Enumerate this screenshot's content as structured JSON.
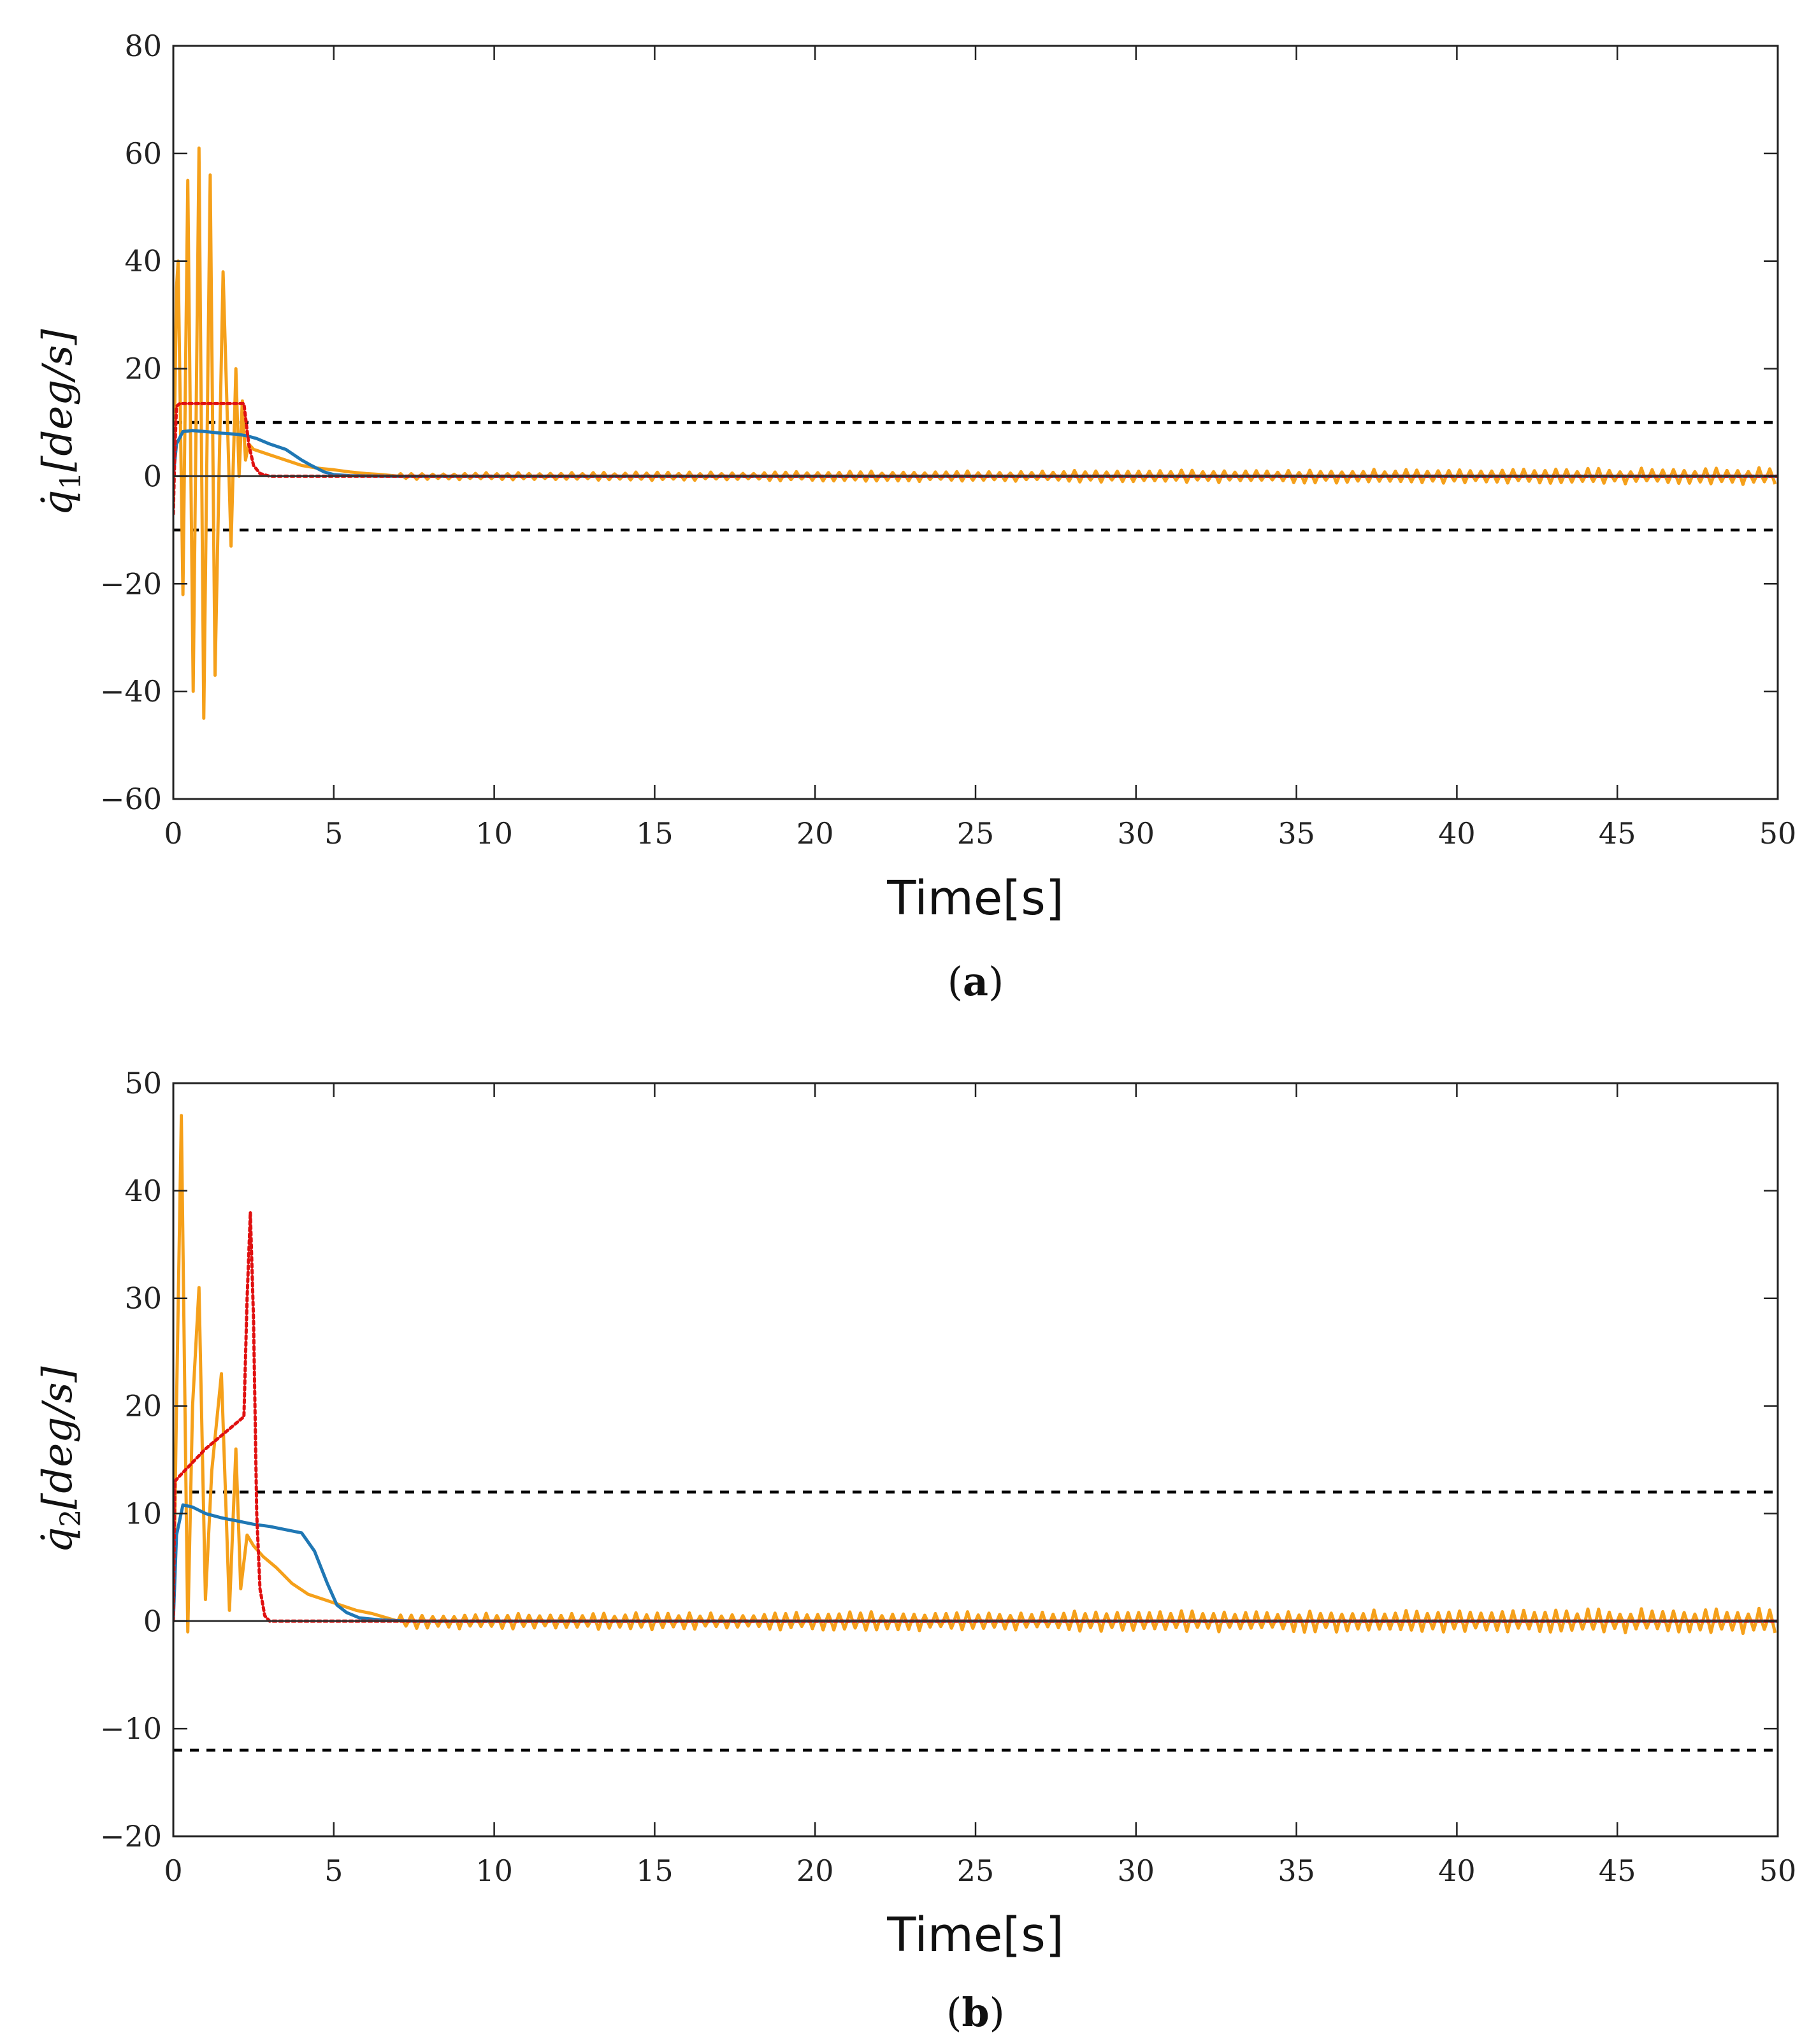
{
  "chart_data": [
    {
      "type": "line",
      "panel": "a",
      "caption_letter": "a",
      "xlabel": "Time[s]",
      "ylabel": "q̇1[deg/s]",
      "ylabel_parts": {
        "symbol": "q̇",
        "sub": "1",
        "unit": "[deg/s]"
      },
      "xlim": [
        0,
        50
      ],
      "ylim": [
        -60,
        80
      ],
      "xticks": [
        0,
        5,
        10,
        15,
        20,
        25,
        30,
        35,
        40,
        45,
        50
      ],
      "yticks": [
        -60,
        -40,
        -20,
        0,
        20,
        40,
        60,
        80
      ],
      "ytick_labels": [
        "−60",
        "−40",
        "−20",
        "0",
        "20",
        "40",
        "60",
        "80"
      ],
      "grid": false,
      "series": [
        {
          "name": "bound-upper",
          "color": "#000000",
          "style": "dashed",
          "x": [
            0,
            50
          ],
          "y": [
            10,
            10
          ]
        },
        {
          "name": "bound-lower",
          "color": "#000000",
          "style": "dashed",
          "x": [
            0,
            50
          ],
          "y": [
            -10,
            -10
          ]
        },
        {
          "name": "orange-oscillating",
          "color": "#F5A01A",
          "style": "solid",
          "x": [
            0,
            0.1,
            0.15,
            0.3,
            0.45,
            0.62,
            0.8,
            0.95,
            1.15,
            1.3,
            1.55,
            1.8,
            1.95,
            2.05,
            2.15,
            2.25,
            2.35,
            2.5,
            3.0,
            3.5,
            4.0,
            4.5,
            5.0,
            5.5,
            6.0,
            6.5,
            7.0,
            8.0,
            10.0
          ],
          "y": [
            -6,
            35,
            40,
            -22,
            55,
            -40,
            61,
            -45,
            56,
            -37,
            38,
            -13,
            20,
            0,
            14,
            3,
            6,
            5,
            4,
            3,
            2,
            1.5,
            1.2,
            0.8,
            0.5,
            0.3,
            0.2,
            0,
            0
          ],
          "noise_after": {
            "from": 7,
            "to": 50,
            "amp_start": 0.6,
            "amp_end": 1.6,
            "freq": 3
          }
        },
        {
          "name": "blue-response",
          "color": "#1F77B4",
          "style": "solid",
          "x": [
            0,
            0.1,
            0.3,
            0.6,
            1.0,
            1.5,
            2.0,
            2.3,
            2.6,
            3.0,
            3.5,
            4.0,
            4.3,
            4.7,
            5.0,
            5.5,
            6.0,
            7.0,
            8.0,
            10.0,
            50
          ],
          "y": [
            0,
            6,
            8.3,
            8.5,
            8.3,
            8.0,
            7.8,
            7.5,
            7.0,
            6.0,
            5.0,
            3.0,
            2.0,
            0.8,
            0.3,
            0.1,
            0.05,
            0,
            0,
            0,
            0
          ]
        },
        {
          "name": "red-dotted",
          "color": "#E01010",
          "style": "dotted",
          "x": [
            0,
            0.05,
            0.1,
            0.2,
            1.0,
            2.2,
            2.35,
            2.5,
            2.7,
            3.0,
            50
          ],
          "y": [
            -7,
            5,
            13,
            13.5,
            13.5,
            13.5,
            6,
            2,
            0.5,
            0,
            0
          ]
        },
        {
          "name": "zero-line",
          "color": "#333333",
          "style": "solid",
          "x": [
            0,
            50
          ],
          "y": [
            0,
            0
          ]
        }
      ]
    },
    {
      "type": "line",
      "panel": "b",
      "caption_letter": "b",
      "xlabel": "Time[s]",
      "ylabel": "q̇2[deg/s]",
      "ylabel_parts": {
        "symbol": "q̇",
        "sub": "2",
        "unit": "[deg/s]"
      },
      "xlim": [
        0,
        50
      ],
      "ylim": [
        -20,
        50
      ],
      "xticks": [
        0,
        5,
        10,
        15,
        20,
        25,
        30,
        35,
        40,
        45,
        50
      ],
      "yticks": [
        -20,
        -10,
        0,
        10,
        20,
        30,
        40,
        50
      ],
      "ytick_labels": [
        "−20",
        "−10",
        "0",
        "10",
        "20",
        "30",
        "40",
        "50"
      ],
      "grid": false,
      "series": [
        {
          "name": "bound-upper",
          "color": "#000000",
          "style": "dashed",
          "x": [
            0,
            50
          ],
          "y": [
            12,
            12
          ]
        },
        {
          "name": "bound-lower",
          "color": "#000000",
          "style": "dashed",
          "x": [
            0,
            50
          ],
          "y": [
            -12,
            -12
          ]
        },
        {
          "name": "orange-oscillating",
          "color": "#F5A01A",
          "style": "solid",
          "x": [
            0,
            0.1,
            0.25,
            0.45,
            0.6,
            0.8,
            1.0,
            1.2,
            1.5,
            1.75,
            1.95,
            2.1,
            2.3,
            2.5,
            2.8,
            3.2,
            3.7,
            4.2,
            4.7,
            5.2,
            5.7,
            6.2,
            7.0,
            8.0,
            10.0
          ],
          "y": [
            0,
            20,
            47,
            -1,
            20,
            31,
            2,
            14,
            23,
            1,
            16,
            3,
            8,
            7,
            6,
            5,
            3.5,
            2.5,
            2.0,
            1.5,
            1.0,
            0.7,
            0.4,
            0.1,
            0
          ],
          "noise_after": {
            "from": 7,
            "to": 50,
            "amp_start": 0.7,
            "amp_end": 1.2,
            "freq": 3
          }
        },
        {
          "name": "blue-response",
          "color": "#1F77B4",
          "style": "solid",
          "x": [
            0,
            0.1,
            0.3,
            0.6,
            1.0,
            1.5,
            2.0,
            2.5,
            3.0,
            3.5,
            4.0,
            4.4,
            4.8,
            5.1,
            5.4,
            5.8,
            6.5,
            7.5,
            10.0,
            50
          ],
          "y": [
            0,
            8,
            10.8,
            10.6,
            10.0,
            9.6,
            9.3,
            9.0,
            8.8,
            8.5,
            8.2,
            6.5,
            3.5,
            1.5,
            0.8,
            0.3,
            0.1,
            0,
            0,
            0
          ]
        },
        {
          "name": "red-dotted",
          "color": "#E01010",
          "style": "dotted",
          "x": [
            0,
            0.05,
            0.2,
            1.0,
            2.2,
            2.3,
            2.4,
            2.5,
            2.6,
            2.7,
            2.85,
            3.0,
            50
          ],
          "y": [
            0,
            13,
            13.5,
            16,
            19,
            30,
            38,
            28,
            10,
            3,
            0.5,
            0,
            0
          ]
        },
        {
          "name": "zero-line",
          "color": "#333333",
          "style": "solid",
          "x": [
            0,
            50
          ],
          "y": [
            0,
            0
          ]
        }
      ]
    }
  ],
  "captions": {
    "a": "a",
    "b": "b"
  }
}
